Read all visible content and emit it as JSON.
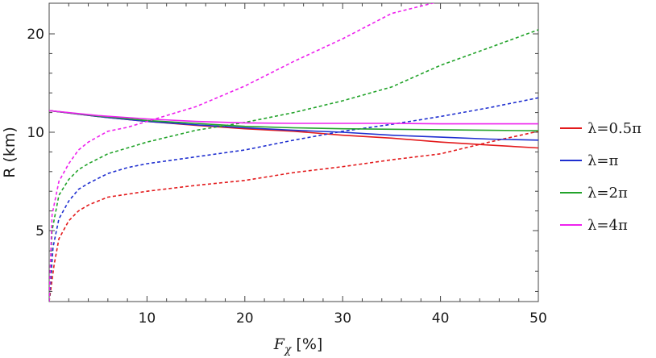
{
  "chart_data": {
    "type": "line",
    "xlabel": "F_χ [%]",
    "xlabel_main": "F",
    "xlabel_sub": "χ",
    "xlabel_unit": " [%]",
    "ylabel": "R (km)",
    "xlim": [
      0,
      50
    ],
    "ylim": [
      1.5,
      21.5
    ],
    "x_ticks": [
      10,
      20,
      30,
      40,
      50
    ],
    "y_ticks": [
      5,
      10,
      20
    ],
    "y_tick_positions": [
      5,
      10,
      20
    ],
    "legend_position": "right",
    "grid": false,
    "series": [
      {
        "name": "λ=0.5π",
        "color": "#e31a1c",
        "solid": [
          [
            0,
            12.2
          ],
          [
            5,
            11.6
          ],
          [
            10,
            11.1
          ],
          [
            15,
            10.7
          ],
          [
            20,
            10.35
          ],
          [
            25,
            10.1
          ],
          [
            30,
            9.85
          ],
          [
            35,
            9.7
          ],
          [
            40,
            9.5
          ],
          [
            45,
            9.35
          ],
          [
            50,
            9.2
          ]
        ],
        "dashed": [
          [
            0,
            1.5
          ],
          [
            0.5,
            3.3
          ],
          [
            1,
            4.6
          ],
          [
            2,
            5.5
          ],
          [
            3,
            6.0
          ],
          [
            4,
            6.3
          ],
          [
            6,
            6.7
          ],
          [
            8,
            6.85
          ],
          [
            10,
            7.0
          ],
          [
            15,
            7.3
          ],
          [
            20,
            7.55
          ],
          [
            25,
            7.95
          ],
          [
            30,
            8.25
          ],
          [
            35,
            8.6
          ],
          [
            40,
            8.9
          ],
          [
            45,
            9.5
          ],
          [
            50,
            10.1
          ]
        ]
      },
      {
        "name": "λ=π",
        "color": "#1f2fd0",
        "solid": [
          [
            0,
            12.2
          ],
          [
            5,
            11.6
          ],
          [
            10,
            11.1
          ],
          [
            15,
            10.75
          ],
          [
            20,
            10.45
          ],
          [
            25,
            10.2
          ],
          [
            30,
            10.0
          ],
          [
            35,
            9.85
          ],
          [
            40,
            9.75
          ],
          [
            45,
            9.65
          ],
          [
            50,
            9.6
          ]
        ],
        "dashed": [
          [
            0,
            1.5
          ],
          [
            0.4,
            4.2
          ],
          [
            1,
            5.6
          ],
          [
            2,
            6.5
          ],
          [
            3,
            7.1
          ],
          [
            4,
            7.4
          ],
          [
            6,
            7.9
          ],
          [
            8,
            8.2
          ],
          [
            10,
            8.4
          ],
          [
            15,
            8.75
          ],
          [
            20,
            9.1
          ],
          [
            25,
            9.6
          ],
          [
            30,
            10.1
          ],
          [
            35,
            10.8
          ],
          [
            40,
            11.6
          ],
          [
            45,
            12.5
          ],
          [
            50,
            13.5
          ]
        ]
      },
      {
        "name": "λ=2π",
        "color": "#22a32a",
        "solid": [
          [
            0,
            12.2
          ],
          [
            5,
            11.65
          ],
          [
            10,
            11.2
          ],
          [
            15,
            10.9
          ],
          [
            20,
            10.6
          ],
          [
            25,
            10.45
          ],
          [
            30,
            10.35
          ],
          [
            35,
            10.3
          ],
          [
            40,
            10.25
          ],
          [
            45,
            10.2
          ],
          [
            50,
            10.15
          ]
        ],
        "dashed": [
          [
            0,
            1.5
          ],
          [
            0.3,
            5.0
          ],
          [
            1,
            6.8
          ],
          [
            2,
            7.6
          ],
          [
            3,
            8.1
          ],
          [
            4,
            8.4
          ],
          [
            6,
            8.9
          ],
          [
            8,
            9.2
          ],
          [
            10,
            9.5
          ],
          [
            15,
            10.2
          ],
          [
            20,
            11.0
          ],
          [
            25,
            12.0
          ],
          [
            30,
            13.2
          ],
          [
            35,
            14.6
          ],
          [
            40,
            16.8
          ],
          [
            45,
            18.6
          ],
          [
            50,
            20.2
          ]
        ]
      },
      {
        "name": "λ=4π",
        "color": "#ee22ee",
        "solid": [
          [
            0,
            12.2
          ],
          [
            5,
            11.7
          ],
          [
            10,
            11.35
          ],
          [
            15,
            11.1
          ],
          [
            20,
            10.95
          ],
          [
            25,
            10.9
          ],
          [
            30,
            10.9
          ],
          [
            35,
            10.9
          ],
          [
            40,
            10.85
          ],
          [
            45,
            10.85
          ],
          [
            50,
            10.85
          ]
        ],
        "dashed": [
          [
            0,
            1.5
          ],
          [
            0.3,
            5.8
          ],
          [
            1,
            7.5
          ],
          [
            2,
            8.4
          ],
          [
            3,
            9.1
          ],
          [
            4,
            9.5
          ],
          [
            6,
            10.1
          ],
          [
            8,
            10.5
          ],
          [
            10,
            11.1
          ],
          [
            15,
            12.6
          ],
          [
            20,
            14.7
          ],
          [
            25,
            17.2
          ],
          [
            30,
            19.5
          ],
          [
            35,
            21.0
          ],
          [
            40,
            21.6
          ],
          [
            45,
            21.6
          ],
          [
            50,
            21.6
          ]
        ]
      }
    ]
  }
}
